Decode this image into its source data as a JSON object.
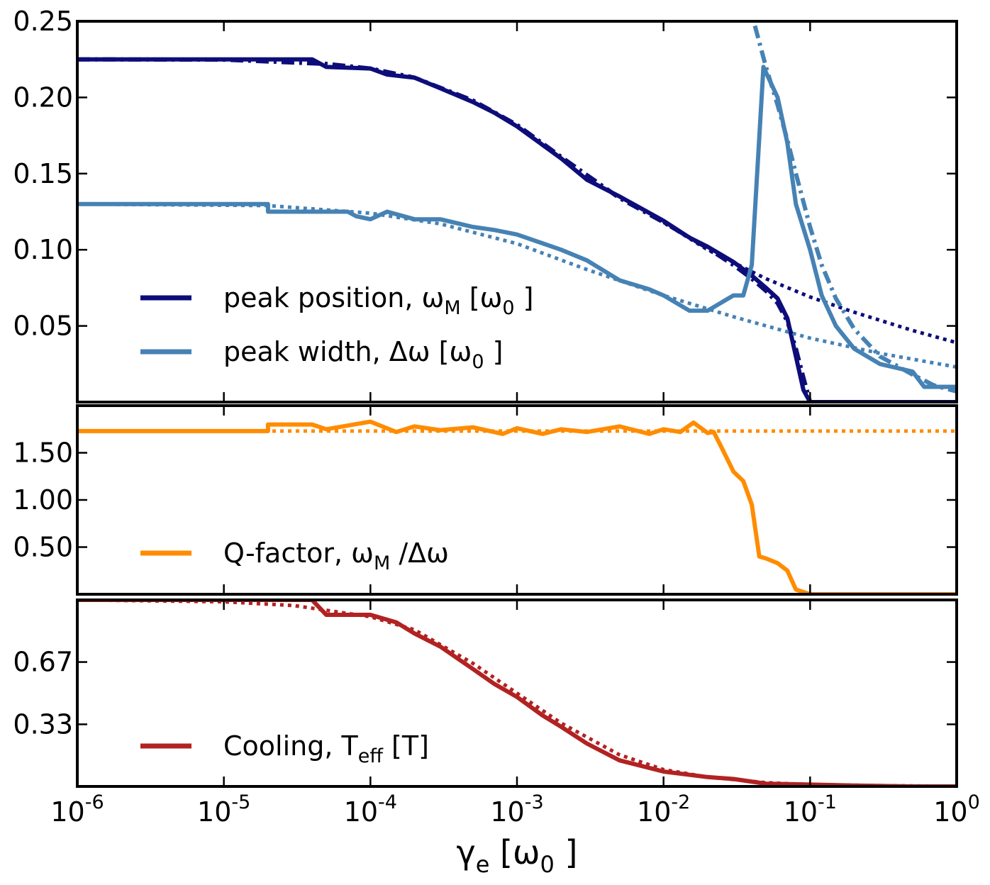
{
  "chart_data": [
    {
      "type": "line",
      "panel": "top",
      "xscale": "log",
      "xlim": [
        1e-06,
        1
      ],
      "ylim": [
        0,
        0.25
      ],
      "yticks": [
        "0.05",
        "0.10",
        "0.15",
        "0.20",
        "0.25"
      ],
      "legend_position": "lower-left",
      "series": [
        {
          "name": "peak position, ωM [ω0]",
          "legend": {
            "main": "peak position, ω",
            "sub": "M",
            "rest": "  [ω",
            "sub2": "0",
            "end": " ]"
          },
          "color": "#0d0d7a",
          "style": "solid",
          "x": [
            1e-06,
            1e-05,
            4e-05,
            5e-05,
            0.0001,
            0.00013,
            0.0002,
            0.0003,
            0.0005,
            0.0007,
            0.001,
            0.002,
            0.003,
            0.005,
            0.01,
            0.015,
            0.02,
            0.03,
            0.04,
            0.05,
            0.06,
            0.07,
            0.08,
            0.09,
            0.1,
            0.2,
            0.5,
            1
          ],
          "y": [
            0.225,
            0.225,
            0.225,
            0.22,
            0.219,
            0.215,
            0.213,
            0.206,
            0.197,
            0.19,
            0.181,
            0.16,
            0.146,
            0.135,
            0.119,
            0.108,
            0.102,
            0.092,
            0.083,
            0.075,
            0.068,
            0.055,
            0.03,
            0.008,
            0.0,
            0.0,
            0.0,
            0.0
          ]
        },
        {
          "name": "peak position fit (dash-dot)",
          "color": "#0d0d7a",
          "style": "dashdot",
          "x": [
            1e-06,
            1e-05,
            5e-05,
            0.0001,
            0.0002,
            0.0005,
            0.001,
            0.002,
            0.005,
            0.01,
            0.02,
            0.03,
            0.04,
            0.05,
            0.06,
            0.07,
            0.08,
            0.09,
            0.1
          ],
          "y": [
            0.225,
            0.2248,
            0.222,
            0.219,
            0.213,
            0.198,
            0.182,
            0.161,
            0.134,
            0.118,
            0.101,
            0.09,
            0.081,
            0.073,
            0.065,
            0.053,
            0.035,
            0.016,
            0.0
          ]
        },
        {
          "name": "peak position asymptote (dotted)",
          "color": "#0d0d7a",
          "style": "dotted",
          "x": [
            0.01,
            0.02,
            0.05,
            0.1,
            0.2,
            0.5,
            1
          ],
          "y": [
            0.118,
            0.1,
            0.081,
            0.069,
            0.059,
            0.047,
            0.039
          ]
        },
        {
          "name": "peak width, Δω [ω0]",
          "legend": {
            "main": "peak width, Δω [ω",
            "sub": "0",
            "rest": " ]"
          },
          "color": "#4682b4",
          "style": "solid",
          "x": [
            1e-06,
            2e-05,
            2e-05,
            5e-05,
            7e-05,
            8e-05,
            0.0001,
            0.00013,
            0.0002,
            0.0003,
            0.0005,
            0.0007,
            0.001,
            0.002,
            0.003,
            0.005,
            0.008,
            0.01,
            0.015,
            0.02,
            0.03,
            0.035,
            0.04,
            0.048,
            0.06,
            0.07,
            0.08,
            0.1,
            0.12,
            0.15,
            0.2,
            0.3,
            0.5,
            0.6,
            1
          ],
          "y": [
            0.13,
            0.13,
            0.125,
            0.125,
            0.125,
            0.122,
            0.12,
            0.125,
            0.12,
            0.12,
            0.115,
            0.113,
            0.11,
            0.1,
            0.093,
            0.08,
            0.074,
            0.07,
            0.06,
            0.06,
            0.07,
            0.07,
            0.09,
            0.22,
            0.2,
            0.17,
            0.13,
            0.1,
            0.07,
            0.05,
            0.035,
            0.025,
            0.02,
            0.01,
            0.01
          ]
        },
        {
          "name": "peak width fit (dash-dot)",
          "color": "#4682b4",
          "style": "dashdot",
          "x": [
            0.042,
            0.05,
            0.06,
            0.07,
            0.08,
            0.1,
            0.12,
            0.15,
            0.2,
            0.3,
            0.5,
            0.7,
            1
          ],
          "y": [
            0.247,
            0.22,
            0.195,
            0.172,
            0.15,
            0.115,
            0.09,
            0.068,
            0.048,
            0.03,
            0.018,
            0.011,
            0.007
          ]
        },
        {
          "name": "peak width asymptote (dotted)",
          "color": "#4682b4",
          "style": "dotted",
          "x": [
            1e-06,
            2e-05,
            0.0001,
            0.0003,
            0.001,
            0.003,
            0.01,
            0.03,
            0.1,
            0.3,
            1
          ],
          "y": [
            0.13,
            0.129,
            0.124,
            0.117,
            0.104,
            0.087,
            0.07,
            0.056,
            0.042,
            0.032,
            0.023
          ]
        }
      ]
    },
    {
      "type": "line",
      "panel": "middle",
      "xscale": "log",
      "xlim": [
        1e-06,
        1
      ],
      "ylim": [
        0,
        2.0
      ],
      "yticks": [
        "0.50",
        "1.00",
        "1.50"
      ],
      "legend_position": "lower-left",
      "series": [
        {
          "name": "Q-factor, ωM /Δω",
          "legend": {
            "main": "Q-factor, ω",
            "sub": "M",
            "rest": " /Δω"
          },
          "color": "#ff8c00",
          "style": "solid",
          "x": [
            1e-06,
            2e-05,
            2e-05,
            4e-05,
            5e-05,
            0.0001,
            0.00015,
            0.0002,
            0.0003,
            0.0005,
            0.0008,
            0.001,
            0.0015,
            0.002,
            0.003,
            0.005,
            0.008,
            0.01,
            0.013,
            0.016,
            0.02,
            0.022,
            0.025,
            0.03,
            0.035,
            0.04,
            0.045,
            0.05,
            0.06,
            0.07,
            0.08,
            0.1,
            0.2,
            0.5,
            1
          ],
          "y": [
            1.73,
            1.73,
            1.8,
            1.8,
            1.75,
            1.83,
            1.72,
            1.78,
            1.74,
            1.77,
            1.7,
            1.76,
            1.7,
            1.75,
            1.72,
            1.78,
            1.7,
            1.75,
            1.72,
            1.82,
            1.71,
            1.72,
            1.55,
            1.3,
            1.2,
            0.95,
            0.4,
            0.38,
            0.33,
            0.25,
            0.05,
            0.0,
            0.0,
            0.0,
            0.0
          ]
        },
        {
          "name": "Q-factor reference (dotted)",
          "color": "#ff8c00",
          "style": "dotted",
          "x": [
            1e-06,
            1
          ],
          "y": [
            1.73,
            1.73
          ]
        }
      ]
    },
    {
      "type": "line",
      "panel": "bottom",
      "xscale": "log",
      "xlim": [
        1e-06,
        1
      ],
      "ylim": [
        0,
        1.0
      ],
      "yticks": [
        "0.33",
        "0.67"
      ],
      "xticks": [
        {
          "base": "10",
          "exp": "-6"
        },
        {
          "base": "10",
          "exp": "-5"
        },
        {
          "base": "10",
          "exp": "-4"
        },
        {
          "base": "10",
          "exp": "-3"
        },
        {
          "base": "10",
          "exp": "-2"
        },
        {
          "base": "10",
          "exp": "-1"
        },
        {
          "base": "10",
          "exp": "0"
        }
      ],
      "xlabel": {
        "main": "γ",
        "sub": "e",
        "rest": "  [ω",
        "sub2": "0",
        "end": " ]"
      },
      "legend_position": "lower-left",
      "series": [
        {
          "name": "Cooling, Teff [T]",
          "legend": {
            "main": "Cooling, T",
            "sub": "eff",
            "rest": " [T]"
          },
          "color": "#b22222",
          "style": "solid",
          "x": [
            1e-06,
            4e-05,
            5e-05,
            0.0001,
            0.00015,
            0.0002,
            0.0003,
            0.0005,
            0.0007,
            0.001,
            0.0015,
            0.002,
            0.003,
            0.005,
            0.01,
            0.02,
            0.03,
            0.05,
            0.1,
            0.2,
            0.5,
            1
          ],
          "y": [
            1.0,
            1.0,
            0.92,
            0.92,
            0.88,
            0.82,
            0.75,
            0.63,
            0.55,
            0.48,
            0.38,
            0.32,
            0.23,
            0.14,
            0.08,
            0.05,
            0.04,
            0.015,
            0.01,
            0.005,
            0.0,
            0.0
          ]
        },
        {
          "name": "Cooling fit (dotted)",
          "color": "#b22222",
          "style": "dotted",
          "x": [
            1e-06,
            1e-05,
            3e-05,
            0.0001,
            0.0002,
            0.0005,
            0.001,
            0.002,
            0.005,
            0.01,
            0.02,
            0.05,
            0.1,
            0.3,
            1
          ],
          "y": [
            1.0,
            0.99,
            0.97,
            0.91,
            0.84,
            0.66,
            0.5,
            0.34,
            0.17,
            0.09,
            0.05,
            0.02,
            0.01,
            0.004,
            0.001
          ]
        }
      ]
    }
  ]
}
